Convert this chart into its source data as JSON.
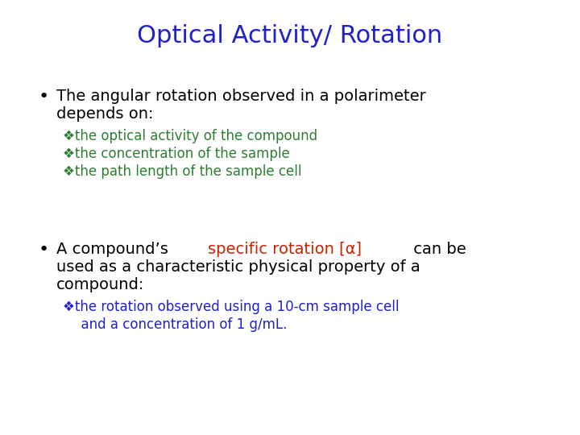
{
  "title": "Optical Activity/ Rotation",
  "title_color": "#2020CC",
  "title_fontsize": 22,
  "bg_color": "#FFFFFF",
  "bullet1_text1": "The angular rotation observed in a polarimeter",
  "bullet1_text2": "depends on:",
  "bullet1_color": "#000000",
  "bullet1_fontsize": 14,
  "sub_items": [
    "❖the optical activity of the compound",
    "❖the concentration of the sample",
    "❖the path length of the sample cell"
  ],
  "sub_color": "#2E7D32",
  "sub_fontsize": 12,
  "bullet2_black1": "A compound’s ",
  "bullet2_red": "specific rotation [α]",
  "bullet2_black2": " can be",
  "bullet2_line2": "used as a characteristic physical property of a",
  "bullet2_line3": "compound:",
  "bullet2_color": "#000000",
  "bullet2_red_color": "#CC2200",
  "bullet2_fontsize": 14,
  "sub2_line1": "❖the rotation observed using a 10-cm sample cell",
  "sub2_line2": "  and a concentration of 1 g/mL.",
  "sub2_color": "#2020CC",
  "sub2_fontsize": 12
}
